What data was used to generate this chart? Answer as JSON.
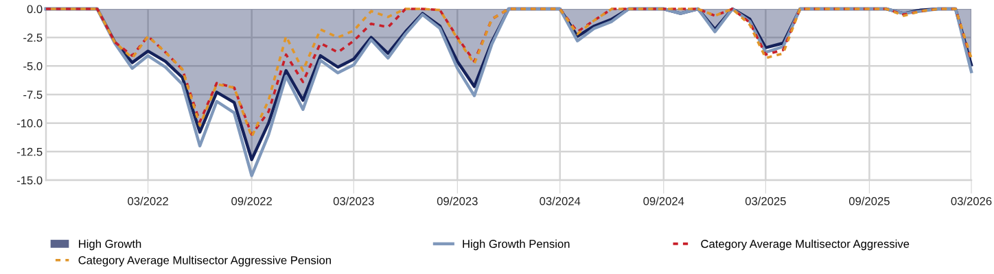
{
  "chart_data": {
    "type": "line",
    "x": [
      "2021-09",
      "2021-10",
      "2021-11",
      "2021-12",
      "2022-01",
      "2022-02",
      "2022-03",
      "2022-04",
      "2022-05",
      "2022-06",
      "2022-07",
      "2022-08",
      "2022-09",
      "2022-10",
      "2022-11",
      "2022-12",
      "2023-01",
      "2023-02",
      "2023-03",
      "2023-04",
      "2023-05",
      "2023-06",
      "2023-07",
      "2023-08",
      "2023-09",
      "2023-10",
      "2023-11",
      "2023-12",
      "2024-01",
      "2024-02",
      "2024-03",
      "2024-04",
      "2024-05",
      "2024-06",
      "2024-07",
      "2024-08",
      "2024-09",
      "2024-10",
      "2024-11",
      "2024-12",
      "2025-01",
      "2025-02",
      "2025-03",
      "2025-04",
      "2025-05",
      "2025-06",
      "2025-07",
      "2025-08",
      "2025-09",
      "2025-10",
      "2025-11",
      "2025-12",
      "2026-01",
      "2026-02",
      "2026-03"
    ],
    "series": [
      {
        "name": "High Growth",
        "type": "area",
        "color": "#14215a",
        "values": [
          0,
          0,
          0,
          0,
          -2.9,
          -4.7,
          -3.7,
          -4.6,
          -6.0,
          -10.8,
          -7.3,
          -8.2,
          -13.2,
          -10.0,
          -5.4,
          -8.0,
          -4.1,
          -5.1,
          -4.4,
          -2.5,
          -3.9,
          -2.0,
          -0.4,
          -1.5,
          -4.6,
          -6.8,
          -2.9,
          0,
          0,
          0,
          0,
          -2.4,
          -1.5,
          -0.9,
          0,
          0,
          0,
          -0.4,
          0,
          -1.8,
          0,
          -0.9,
          -3.4,
          -3.0,
          0,
          0,
          0,
          0,
          0,
          0,
          -0.4,
          -0.1,
          0,
          0,
          -4.9
        ]
      },
      {
        "name": "High Growth Pension",
        "color": "#7f98bb",
        "values": [
          0,
          0,
          0,
          0,
          -3.0,
          -5.2,
          -4.1,
          -5.1,
          -6.6,
          -12.0,
          -8.1,
          -9.1,
          -14.6,
          -11.0,
          -5.9,
          -8.8,
          -4.5,
          -5.6,
          -4.9,
          -2.7,
          -4.3,
          -2.2,
          -0.5,
          -1.7,
          -5.2,
          -7.6,
          -3.1,
          0,
          0,
          0,
          0,
          -2.8,
          -1.7,
          -1.1,
          0,
          0,
          0,
          -0.4,
          0,
          -2.0,
          0,
          -1.1,
          -3.8,
          -3.3,
          0,
          0,
          0,
          0,
          0,
          0,
          -0.4,
          -0.2,
          0,
          0,
          -5.5
        ]
      },
      {
        "name": "Category Average Multisector Aggressive",
        "color": "#c8202a",
        "line_style": "dashed",
        "values": [
          0,
          0,
          0,
          0,
          -2.9,
          -4.1,
          -2.4,
          -3.8,
          -5.3,
          -9.9,
          -6.5,
          -6.9,
          -11.0,
          -9.0,
          -4.0,
          -6.4,
          -3.0,
          -3.8,
          -2.8,
          -1.3,
          -1.6,
          0,
          0,
          -0.1,
          -2.5,
          -4.6,
          -0.9,
          0,
          0,
          0,
          0,
          -2.0,
          -1.0,
          0,
          0,
          0,
          0,
          0,
          0,
          -0.6,
          0,
          -1.2,
          -4.0,
          -3.6,
          0,
          0,
          0,
          0,
          0,
          0,
          -0.5,
          -0.2,
          0,
          0,
          -4.5
        ]
      },
      {
        "name": "Category Average Multisector Aggressive Pension",
        "color": "#e0962a",
        "line_style": "dashed",
        "values": [
          0,
          0,
          0,
          0,
          -2.9,
          -4.3,
          -2.4,
          -3.8,
          -5.3,
          -10.2,
          -6.6,
          -6.9,
          -11.2,
          -8.0,
          -2.4,
          -5.4,
          -1.8,
          -2.5,
          -1.9,
          -0.2,
          -0.7,
          0,
          0,
          -0.1,
          -2.6,
          -4.8,
          -0.9,
          0,
          0,
          0,
          0,
          -2.2,
          -1.0,
          0,
          0,
          0,
          0,
          0,
          0,
          -0.6,
          0,
          -1.4,
          -4.3,
          -3.9,
          0,
          0,
          0,
          0,
          0,
          0,
          -0.6,
          -0.2,
          0,
          0,
          -4.3
        ]
      }
    ],
    "xlim": [
      "2021-09",
      "2026-03"
    ],
    "xticks": [
      {
        "value": "2022-03",
        "label": "03/2022"
      },
      {
        "value": "2022-09",
        "label": "09/2022"
      },
      {
        "value": "2023-03",
        "label": "03/2023"
      },
      {
        "value": "2023-09",
        "label": "09/2023"
      },
      {
        "value": "2024-03",
        "label": "03/2024"
      },
      {
        "value": "2024-09",
        "label": "09/2024"
      },
      {
        "value": "2025-03",
        "label": "03/2025"
      },
      {
        "value": "2025-09",
        "label": "09/2025"
      },
      {
        "value": "2026-03",
        "label": "03/2026"
      }
    ],
    "ylim": [
      -15,
      0
    ],
    "yticks": [
      {
        "value": 0,
        "label": "0.0"
      },
      {
        "value": -2.5,
        "label": "-2.5"
      },
      {
        "value": -5,
        "label": "-5.0"
      },
      {
        "value": -7.5,
        "label": "-7.5"
      },
      {
        "value": -10,
        "label": "-10.0"
      },
      {
        "value": -12.5,
        "label": "-12.5"
      },
      {
        "value": -15,
        "label": "-15.0"
      }
    ],
    "grid": true,
    "legend": "bottom"
  }
}
